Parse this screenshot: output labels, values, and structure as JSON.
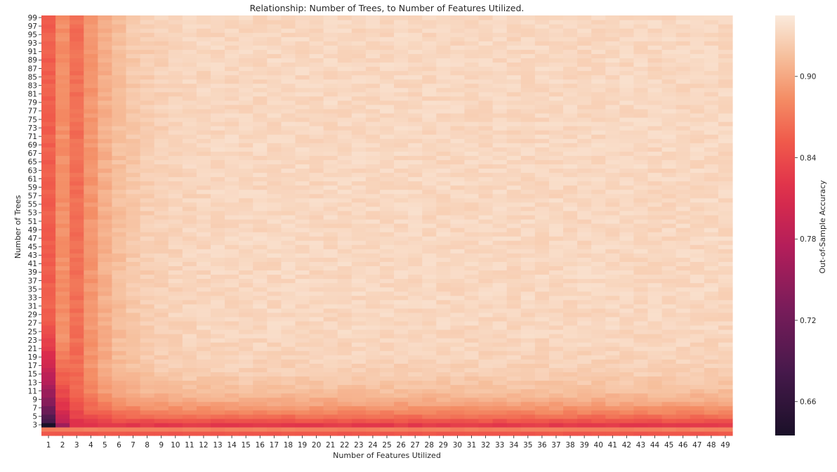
{
  "chart_data": {
    "type": "heatmap",
    "title": "Relationship: Number of Trees, to Number of Features Utilized.",
    "xlabel": "Number of Features Utilized",
    "ylabel": "Number of Trees",
    "x": [
      1,
      2,
      3,
      4,
      5,
      6,
      7,
      8,
      9,
      10,
      11,
      12,
      13,
      14,
      15,
      16,
      17,
      18,
      19,
      20,
      21,
      22,
      23,
      24,
      25,
      26,
      27,
      28,
      29,
      30,
      31,
      32,
      33,
      34,
      35,
      36,
      37,
      38,
      39,
      40,
      41,
      42,
      43,
      44,
      45,
      46,
      47,
      48,
      49
    ],
    "y_range": [
      1,
      99
    ],
    "y_tick_labels": [
      3,
      5,
      7,
      9,
      11,
      13,
      15,
      17,
      19,
      21,
      23,
      25,
      27,
      29,
      31,
      33,
      35,
      37,
      39,
      41,
      43,
      45,
      47,
      49,
      51,
      53,
      55,
      57,
      59,
      61,
      63,
      65,
      67,
      69,
      71,
      73,
      75,
      77,
      79,
      81,
      83,
      85,
      87,
      89,
      91,
      93,
      95,
      97,
      99
    ],
    "colorbar": {
      "label": "Out-of-Sample Accuracy",
      "ticks": [
        0.66,
        0.72,
        0.78,
        0.84,
        0.9
      ],
      "range": [
        0.635,
        0.945
      ]
    },
    "colormap": "rocket",
    "value_summary": {
      "row_1_typical": 0.848,
      "row_2_typical": 0.875,
      "col_1_high_trees": 0.855,
      "col_1_min": 0.635,
      "col_2_high_trees": 0.885,
      "plateau": 0.932
    },
    "grid": false,
    "legend": "colorbar-right"
  }
}
